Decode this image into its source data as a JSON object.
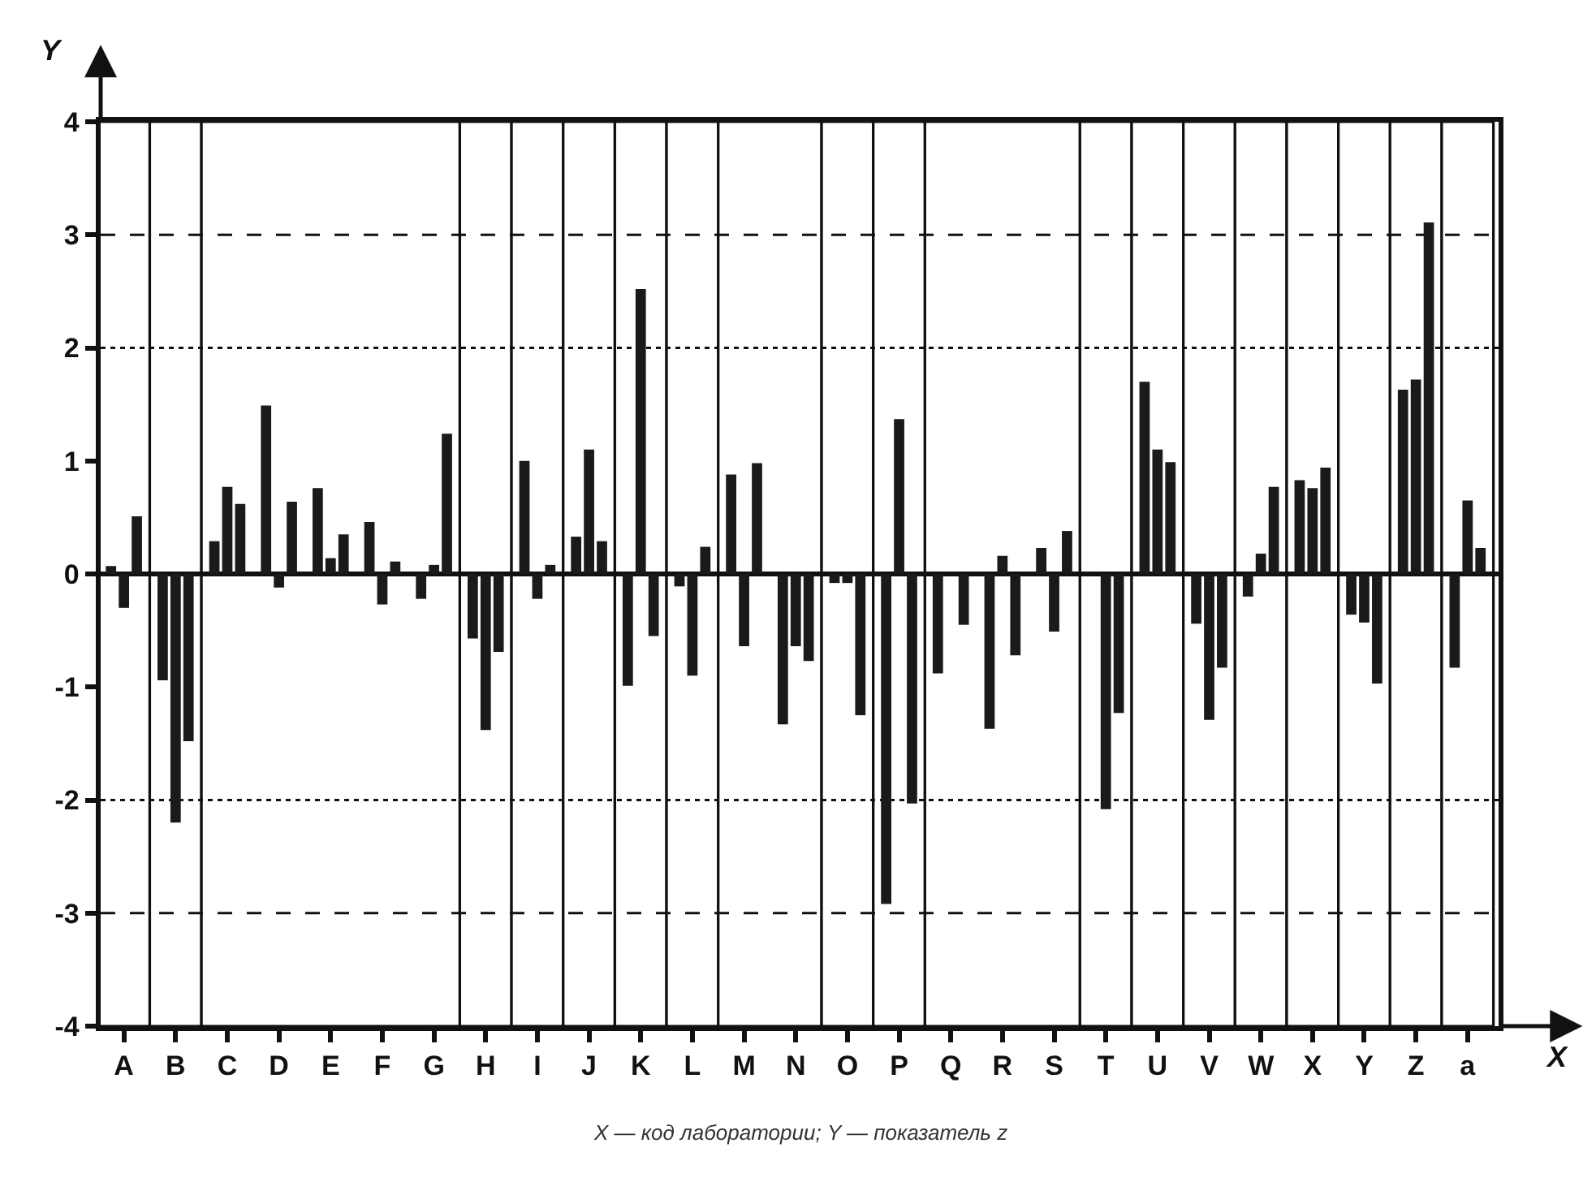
{
  "chart_data": {
    "type": "bar",
    "xlabel": "X",
    "ylabel": "Y",
    "categories": [
      "A",
      "B",
      "C",
      "D",
      "E",
      "F",
      "G",
      "H",
      "I",
      "J",
      "K",
      "L",
      "M",
      "N",
      "O",
      "P",
      "Q",
      "R",
      "S",
      "T",
      "U",
      "V",
      "W",
      "X",
      "Y",
      "Z",
      "a"
    ],
    "ylim": [
      -4,
      4
    ],
    "yticks": [
      -4,
      -3,
      -2,
      -1,
      0,
      1,
      2,
      3,
      4
    ],
    "series": [
      {
        "color": "#1a1a1a",
        "values": [
          0.07,
          -0.94,
          0.29,
          1.49,
          0.76,
          0.46,
          -0.22,
          -0.57,
          1.0,
          0.33,
          -0.99,
          -0.11,
          0.88,
          -1.33,
          -0.08,
          -2.92,
          -0.88,
          -1.37,
          0.23,
          null,
          1.7,
          -0.44,
          -0.2,
          0.83,
          -0.36,
          1.63,
          -0.83
        ]
      },
      {
        "color": "#1a1a1a",
        "values": [
          -0.3,
          -2.2,
          0.77,
          -0.12,
          0.14,
          -0.27,
          0.08,
          -1.38,
          -0.22,
          1.1,
          2.52,
          -0.9,
          -0.64,
          -0.64,
          -0.08,
          1.37,
          null,
          0.16,
          -0.51,
          -2.08,
          1.1,
          -1.29,
          0.18,
          0.76,
          -0.43,
          1.72,
          0.65
        ]
      },
      {
        "color": "#1a1a1a",
        "values": [
          0.51,
          -1.48,
          0.62,
          0.64,
          0.35,
          0.11,
          1.24,
          -0.69,
          0.08,
          0.29,
          -0.55,
          0.24,
          0.98,
          -0.77,
          -1.25,
          -2.03,
          -0.45,
          -0.72,
          0.38,
          -1.23,
          0.99,
          -0.83,
          0.77,
          0.94,
          -0.97,
          3.11,
          0.23
        ]
      }
    ],
    "ref_lines": [
      {
        "axis": "y",
        "value": 3,
        "line_style": "dashed"
      },
      {
        "axis": "y",
        "value": -3,
        "line_style": "dashed"
      },
      {
        "axis": "y",
        "value": 2,
        "line_style": "dotted"
      },
      {
        "axis": "y",
        "value": -2,
        "line_style": "dotted"
      }
    ],
    "bands": [
      {
        "axis": "x",
        "from": "A",
        "to": "A",
        "color": "#ffffff"
      },
      {
        "axis": "x",
        "from": "B",
        "to": "B",
        "color": "#ffffff"
      },
      {
        "axis": "x",
        "from": "C",
        "to": "G",
        "color": "#ffffff"
      },
      {
        "axis": "x",
        "from": "H",
        "to": "H",
        "color": "#ffffff"
      },
      {
        "axis": "x",
        "from": "I",
        "to": "I",
        "color": "#ffffff"
      },
      {
        "axis": "x",
        "from": "J",
        "to": "J",
        "color": "#ffffff"
      },
      {
        "axis": "x",
        "from": "K",
        "to": "K",
        "color": "#ffffff"
      },
      {
        "axis": "x",
        "from": "L",
        "to": "L",
        "color": "#ffffff"
      },
      {
        "axis": "x",
        "from": "M",
        "to": "N",
        "color": "#ffffff"
      },
      {
        "axis": "x",
        "from": "O",
        "to": "O",
        "color": "#ffffff"
      },
      {
        "axis": "x",
        "from": "P",
        "to": "P",
        "color": "#ffffff"
      },
      {
        "axis": "x",
        "from": "Q",
        "to": "S",
        "color": "#ffffff"
      },
      {
        "axis": "x",
        "from": "T",
        "to": "T",
        "color": "#ffffff"
      },
      {
        "axis": "x",
        "from": "U",
        "to": "U",
        "color": "#ffffff"
      },
      {
        "axis": "x",
        "from": "V",
        "to": "V",
        "color": "#ffffff"
      },
      {
        "axis": "x",
        "from": "W",
        "to": "W",
        "color": "#ffffff"
      },
      {
        "axis": "x",
        "from": "X",
        "to": "X",
        "color": "#ffffff"
      },
      {
        "axis": "x",
        "from": "Y",
        "to": "Y",
        "color": "#ffffff"
      },
      {
        "axis": "x",
        "from": "Z",
        "to": "Z",
        "color": "#ffffff"
      },
      {
        "axis": "x",
        "from": "a",
        "to": "a",
        "color": "#ffffff"
      }
    ],
    "annotations": [
      "X — код лаборатории; Y — показатель z"
    ],
    "grid": false
  }
}
